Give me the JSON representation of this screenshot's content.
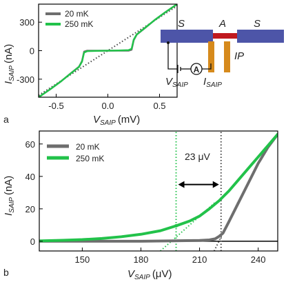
{
  "panel_labels": [
    "a",
    "b"
  ],
  "schematic": {
    "S_left": "S",
    "A": "A",
    "S_right": "S",
    "IP": "IP",
    "V_label": "V",
    "V_sub": "SAIP",
    "I_label": "I",
    "I_sub": "SAIP",
    "ammeter": "A",
    "colors": {
      "lead": "#4d55a8",
      "island": "#c0191f",
      "probe": "#d68a1c"
    }
  },
  "colors": {
    "series_20mK": "#6e6e6e",
    "series_250mK": "#22c24a",
    "fit_20mK": "#444444",
    "fit_250mK": "#22c24a"
  },
  "chart_data": [
    {
      "type": "line",
      "panel": "a",
      "xlabel": "V",
      "xlabel_sub": "SAIP",
      "xlabel_unit": "(mV)",
      "ylabel": "I",
      "ylabel_sub": "SAIP",
      "ylabel_unit": "(nA)",
      "xlim": [
        -0.67,
        0.67
      ],
      "ylim": [
        -490,
        490
      ],
      "xticks": [
        -0.5,
        0.0,
        0.5
      ],
      "xtick_labels": [
        "-0.5",
        "0.0",
        "0.5"
      ],
      "yticks": [
        -300,
        0,
        300
      ],
      "ytick_labels": [
        "-300",
        "0",
        "300"
      ],
      "legend": "top-left",
      "series": [
        {
          "name": "20 mK",
          "color": "#6e6e6e",
          "x": [
            -0.67,
            -0.55,
            -0.45,
            -0.35,
            -0.28,
            -0.25,
            -0.23,
            -0.2,
            -0.1,
            0.0,
            0.1,
            0.2,
            0.23,
            0.25,
            0.28,
            0.35,
            0.45,
            0.55,
            0.67
          ],
          "y": [
            -490,
            -400,
            -320,
            -230,
            -170,
            -110,
            -10,
            0,
            0,
            0,
            0,
            0,
            10,
            110,
            170,
            230,
            320,
            400,
            490
          ]
        },
        {
          "name": "250 mK",
          "color": "#22c24a",
          "x": [
            -0.67,
            -0.55,
            -0.45,
            -0.35,
            -0.28,
            -0.25,
            -0.23,
            -0.2,
            -0.1,
            0.0,
            0.1,
            0.2,
            0.23,
            0.25,
            0.28,
            0.35,
            0.45,
            0.55,
            0.67
          ],
          "y": [
            -490,
            -400,
            -320,
            -232,
            -172,
            -115,
            -20,
            -5,
            -2,
            0,
            2,
            5,
            20,
            115,
            172,
            232,
            320,
            400,
            490
          ]
        }
      ],
      "fits": [
        {
          "x": [
            -0.67,
            0.67
          ],
          "y": [
            -470,
            470
          ],
          "style": "dotted",
          "color": "#444444"
        }
      ]
    },
    {
      "type": "line",
      "panel": "b",
      "xlabel": "V",
      "xlabel_sub": "SAIP",
      "xlabel_unit": "(μV)",
      "ylabel": "I",
      "ylabel_sub": "SAIP",
      "ylabel_unit": "(nA)",
      "xlim": [
        128,
        250
      ],
      "ylim": [
        -6,
        68
      ],
      "xticks": [
        150,
        180,
        210,
        240
      ],
      "xtick_labels": [
        "150",
        "180",
        "210",
        "240"
      ],
      "yticks": [
        0,
        20,
        40,
        60
      ],
      "ytick_labels": [
        "0",
        "20",
        "40",
        "60"
      ],
      "legend": "top-left",
      "annotation": {
        "text": "23 μV",
        "x_from": 198,
        "x_to": 221,
        "y": 35
      },
      "series": [
        {
          "name": "20 mK",
          "color": "#6e6e6e",
          "x": [
            128,
            150,
            180,
            200,
            210,
            215,
            218,
            220,
            222,
            225,
            230,
            235,
            240,
            245,
            250
          ],
          "y": [
            0,
            0,
            0,
            0.3,
            0.5,
            0.8,
            1.5,
            3,
            5,
            12,
            24,
            36,
            48,
            58,
            66
          ]
        },
        {
          "name": "250 mK",
          "color": "#22c24a",
          "x": [
            128,
            140,
            150,
            160,
            170,
            180,
            190,
            198,
            205,
            210,
            215,
            220,
            225,
            230,
            235,
            240,
            245,
            250
          ],
          "y": [
            0.2,
            0.6,
            1.0,
            1.7,
            2.8,
            4.3,
            6.5,
            9.5,
            12.5,
            15.5,
            20,
            25,
            31,
            38,
            45,
            52,
            59,
            66
          ]
        }
      ],
      "fits": [
        {
          "x": [
            190,
            218
          ],
          "y": [
            -6,
            24
          ],
          "style": "dotted",
          "color": "#22c24a"
        },
        {
          "x": [
            198,
            198
          ],
          "y": [
            -6,
            68
          ],
          "style": "dotted",
          "color": "#22c24a"
        },
        {
          "x": [
            217.5,
            230
          ],
          "y": [
            -6,
            25
          ],
          "style": "dotted",
          "color": "#444444"
        },
        {
          "x": [
            221,
            221
          ],
          "y": [
            -6,
            68
          ],
          "style": "dotted",
          "color": "#444444"
        }
      ]
    }
  ]
}
